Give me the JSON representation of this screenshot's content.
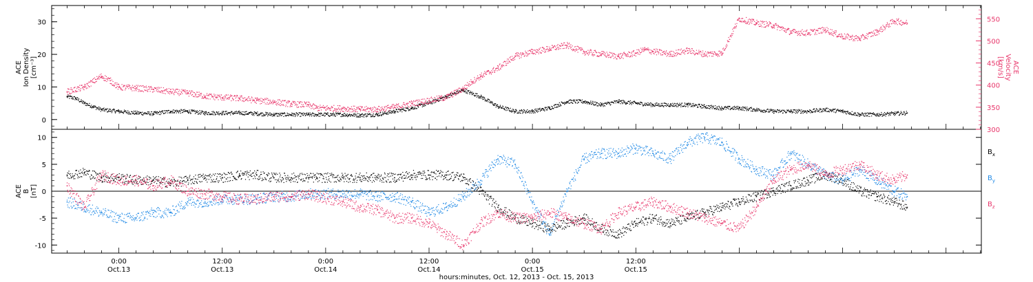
{
  "colors": {
    "black": "#000000",
    "pink": "#e8356a",
    "blue": "#1e88e5"
  },
  "chart_data": [
    {
      "type": "scatter",
      "panel": "top",
      "left_axis_label": [
        "ACE",
        "Ion Density",
        "[cm⁻³]"
      ],
      "right_axis_label": [
        "ACE",
        "Velocity",
        "[km/s]"
      ],
      "left_ylim": [
        -3,
        35
      ],
      "left_yticks": [
        "0",
        "10",
        "20",
        "30"
      ],
      "right_ylim": [
        300,
        580
      ],
      "right_yticks": [
        "300",
        "350",
        "400",
        "450",
        "500",
        "550"
      ],
      "x_unit": "hours since 2013-10-12 00:00",
      "series": [
        {
          "axis": "left",
          "color": "#000000",
          "x": [
            18,
            19,
            20,
            21,
            22,
            24,
            26,
            28,
            30,
            32,
            34,
            36,
            38,
            40,
            42,
            44,
            46,
            47,
            50,
            52,
            54,
            56,
            58,
            60,
            62,
            64,
            66,
            68,
            70,
            72,
            74,
            76,
            78,
            80,
            82,
            84,
            86,
            88,
            90,
            92,
            94,
            96,
            98,
            100,
            102,
            104,
            106,
            108,
            110,
            112,
            114,
            115.5
          ],
          "y": [
            7,
            6.5,
            5,
            4,
            3,
            2.5,
            2,
            1.8,
            2.5,
            2.5,
            2,
            2,
            2,
            1.8,
            1.5,
            1.5,
            1.5,
            1.5,
            1.5,
            1.3,
            1.5,
            2.5,
            3.5,
            5,
            7,
            9,
            7,
            4,
            2.5,
            2.5,
            3.5,
            5.5,
            5.5,
            4.5,
            5.5,
            5,
            4.5,
            4.5,
            4.5,
            4,
            3.5,
            3.5,
            3,
            2.5,
            2.5,
            2.5,
            3,
            2.5,
            1.5,
            1.5,
            1.8,
            2
          ]
        },
        {
          "axis": "right",
          "color": "#e8356a",
          "x": [
            18,
            20,
            22,
            23,
            24,
            26,
            28,
            30,
            32,
            34,
            36,
            38,
            40,
            42,
            44,
            46,
            47,
            50,
            52,
            54,
            56,
            58,
            60,
            62,
            64,
            65,
            66,
            68,
            70,
            72,
            74,
            76,
            78,
            80,
            82,
            84,
            85,
            86,
            88,
            90,
            92,
            94,
            96,
            98,
            100,
            102,
            104,
            106,
            108,
            110,
            112,
            114,
            115.5
          ],
          "y": [
            385,
            395,
            420,
            410,
            395,
            393,
            390,
            385,
            382,
            375,
            372,
            370,
            365,
            362,
            357,
            355,
            348,
            347,
            345,
            345,
            350,
            358,
            365,
            372,
            392,
            408,
            420,
            438,
            465,
            475,
            482,
            490,
            475,
            470,
            465,
            472,
            480,
            476,
            470,
            478,
            470,
            472,
            550,
            540,
            535,
            520,
            518,
            525,
            510,
            505,
            520,
            545,
            540
          ]
        }
      ]
    },
    {
      "type": "scatter",
      "panel": "bottom",
      "axis_label": [
        "ACE",
        "B",
        "[nT]"
      ],
      "ylim": [
        -11.5,
        11.5
      ],
      "yticks": [
        "-10",
        "-5",
        "0",
        "5",
        "10"
      ],
      "x_unit": "hours since 2013-10-12 00:00",
      "legend": [
        {
          "label": "Bx",
          "color": "#000000"
        },
        {
          "label": "By",
          "color": "#1e88e5"
        },
        {
          "label": "Bz",
          "color": "#e8356a"
        }
      ],
      "series": [
        {
          "name": "Bx",
          "color": "#000000",
          "x": [
            18,
            20,
            22,
            24,
            26,
            28,
            30,
            32,
            34,
            36,
            38,
            40,
            42,
            44,
            46,
            47,
            50,
            52,
            54,
            56,
            58,
            60,
            62,
            64,
            66,
            68,
            70,
            72,
            74,
            76,
            78,
            80,
            82,
            84,
            86,
            88,
            90,
            92,
            94,
            96,
            98,
            100,
            102,
            104,
            106,
            108,
            110,
            112,
            114,
            115.5
          ],
          "y": [
            3,
            3.5,
            2.5,
            2.5,
            2,
            2,
            1.5,
            2,
            2.5,
            2.5,
            3,
            3,
            2.5,
            2.5,
            2.5,
            2.5,
            2.5,
            2.5,
            2.5,
            2.5,
            3,
            3,
            3,
            2.5,
            0,
            -3,
            -5,
            -6,
            -7,
            -6,
            -5,
            -7,
            -8,
            -6,
            -5,
            -6,
            -5,
            -4,
            -3,
            -2,
            -1,
            0,
            1,
            2,
            3,
            2,
            0,
            -1,
            -2,
            -3
          ]
        },
        {
          "name": "By",
          "color": "#1e88e5",
          "x": [
            18,
            20,
            22,
            24,
            26,
            28,
            30,
            32,
            34,
            36,
            38,
            40,
            42,
            44,
            46,
            47,
            50,
            52,
            54,
            56,
            58,
            60,
            62,
            64,
            66,
            68,
            70,
            72,
            74,
            76,
            78,
            80,
            82,
            84,
            86,
            88,
            90,
            92,
            94,
            96,
            98,
            100,
            102,
            104,
            106,
            108,
            110,
            112,
            114,
            115.5
          ],
          "y": [
            -2,
            -3,
            -4,
            -5,
            -5,
            -4,
            -4,
            -2,
            -2,
            -1.5,
            -1.5,
            -1.5,
            -1,
            -1,
            -0.5,
            -0.5,
            -0.5,
            -0.5,
            -1,
            -1,
            -2,
            -4,
            -3,
            -1,
            2,
            6,
            5,
            -2,
            -8,
            0,
            6,
            7,
            7,
            8,
            7,
            6,
            9,
            10,
            9,
            6,
            4,
            3,
            7,
            5,
            3,
            2,
            4,
            2,
            0,
            -1
          ]
        },
        {
          "name": "Bz",
          "color": "#e8356a",
          "x": [
            18,
            20,
            22,
            24,
            26,
            28,
            30,
            32,
            34,
            36,
            38,
            40,
            42,
            44,
            46,
            47,
            50,
            52,
            54,
            56,
            58,
            60,
            62,
            64,
            66,
            68,
            70,
            72,
            74,
            76,
            78,
            80,
            82,
            84,
            86,
            88,
            90,
            92,
            94,
            96,
            98,
            100,
            102,
            104,
            106,
            108,
            110,
            112,
            114,
            115.5
          ],
          "y": [
            1,
            -3,
            3,
            2,
            2,
            1,
            2,
            0,
            -0.5,
            -1,
            -1.5,
            -1.5,
            -1,
            -1,
            -0.5,
            -1,
            -2,
            -3,
            -3.5,
            -5,
            -5,
            -6,
            -8,
            -10,
            -6,
            -4,
            -5,
            -5,
            -4,
            -5,
            -6,
            -7,
            -4,
            -3,
            -2,
            -3,
            -4,
            -5,
            -6,
            -7,
            -3,
            2,
            4,
            5,
            3,
            4,
            5,
            3,
            2,
            3
          ]
        }
      ]
    }
  ],
  "x_axis": {
    "tick_labels": [
      {
        "time": "0:00",
        "date": "Oct.13"
      },
      {
        "time": "12:00",
        "date": "Oct.13"
      },
      {
        "time": "0:00",
        "date": "Oct.14"
      },
      {
        "time": "12:00",
        "date": "Oct.14"
      },
      {
        "time": "0:00",
        "date": "Oct.15"
      },
      {
        "time": "12:00",
        "date": "Oct.15"
      }
    ],
    "tick_hours": [
      24,
      36,
      48,
      60,
      72,
      84
    ],
    "xlim_hours": [
      16.2,
      124.1
    ],
    "title": "hours:minutes, Oct. 12, 2013 - Oct. 15, 2013"
  },
  "top_panel": {
    "left_label": [
      "ACE",
      "Ion Density",
      "[cm⁻³]"
    ],
    "right_label": [
      "ACE",
      "Velocity",
      "[km/s]"
    ]
  },
  "bottom_panel": {
    "left_label": [
      "ACE",
      "B",
      "[nT]"
    ]
  }
}
